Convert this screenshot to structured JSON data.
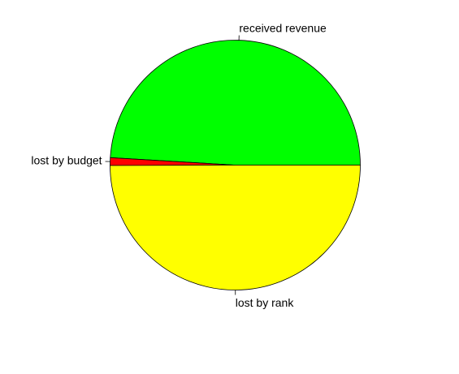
{
  "chart_data": {
    "type": "pie",
    "title": "",
    "slices": [
      {
        "label": "received revenue",
        "value": 49.1,
        "color": "#00ff00"
      },
      {
        "label": "lost by budget",
        "value": 1.0,
        "color": "#ff0000"
      },
      {
        "label": "lost by rank",
        "value": 50.0,
        "color": "#ffff00"
      }
    ],
    "start_angle_deg": 0,
    "direction": "counterclockwise",
    "legend": "none"
  }
}
